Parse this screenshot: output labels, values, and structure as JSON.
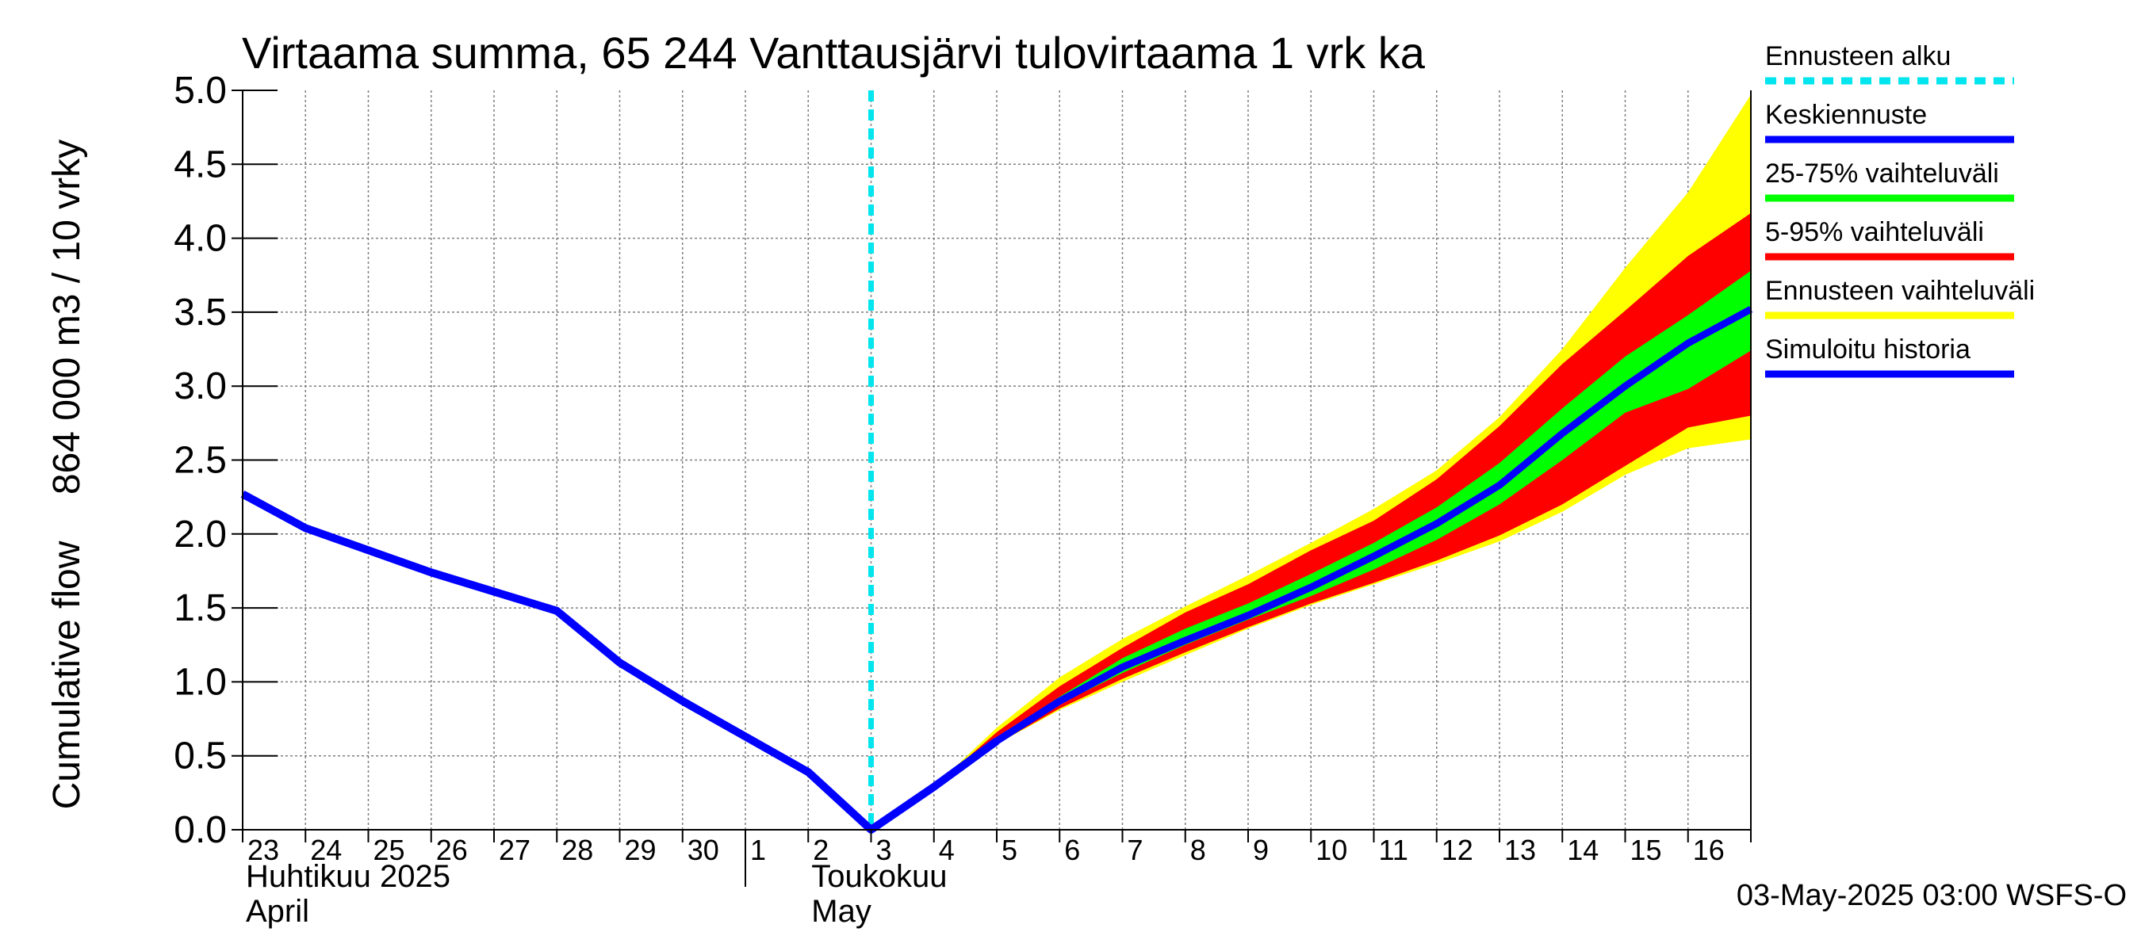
{
  "chart_data": {
    "type": "area",
    "title": "Virtaama summa, 65 244 Vanttausjärvi tulovirtaama 1 vrk ka",
    "ylabel_line1": "Cumulative flow",
    "ylabel_line2": "864 000 m3 / 10 vrky",
    "ylim": [
      0.0,
      5.0
    ],
    "yticks": [
      "0.0",
      "0.5",
      "1.0",
      "1.5",
      "2.0",
      "2.5",
      "3.0",
      "3.5",
      "4.0",
      "4.5",
      "5.0"
    ],
    "xlim": [
      0,
      24
    ],
    "x_day_labels": [
      "23",
      "24",
      "25",
      "26",
      "27",
      "28",
      "29",
      "30",
      "1",
      "2",
      "3",
      "4",
      "5",
      "6",
      "7",
      "8",
      "9",
      "10",
      "11",
      "12",
      "13",
      "14",
      "15",
      "16"
    ],
    "month_labels": [
      {
        "fi": "Huhtikuu  2025",
        "en": "April",
        "start_day_index": 0
      },
      {
        "fi": "Toukokuu",
        "en": "May",
        "start_day_index": 9
      }
    ],
    "month_boundary_day_index": 8,
    "forecast_start_x": 10.0,
    "grid": true,
    "history": {
      "x": [
        0,
        1,
        2,
        3,
        4,
        5,
        6,
        7,
        8,
        9,
        10,
        11,
        12
      ],
      "y": [
        2.27,
        2.04,
        1.89,
        1.74,
        1.61,
        1.48,
        1.13,
        0.87,
        0.63,
        0.39,
        0.0,
        0.29,
        0.6
      ]
    },
    "median": {
      "x": [
        11,
        12,
        13,
        14,
        15,
        16,
        17,
        18,
        19,
        20,
        21,
        22,
        23,
        24
      ],
      "y": [
        0.29,
        0.6,
        0.87,
        1.1,
        1.28,
        1.45,
        1.64,
        1.85,
        2.07,
        2.33,
        2.68,
        3.0,
        3.29,
        3.52
      ]
    },
    "bands": [
      {
        "name": "Ennusteen vaihteluväli",
        "color": "#ffff00",
        "x": [
          11,
          12,
          13,
          14,
          15,
          16,
          17,
          18,
          19,
          20,
          21,
          22,
          23,
          24
        ],
        "lower": [
          0.29,
          0.58,
          0.81,
          1.0,
          1.18,
          1.36,
          1.52,
          1.66,
          1.8,
          1.95,
          2.15,
          2.4,
          2.58,
          2.64
        ],
        "upper": [
          0.29,
          0.69,
          1.03,
          1.29,
          1.51,
          1.72,
          1.94,
          2.17,
          2.43,
          2.79,
          3.25,
          3.8,
          4.31,
          4.97
        ]
      },
      {
        "name": "5-95% vaihteluväli",
        "color": "#ff0000",
        "x": [
          11,
          12,
          13,
          14,
          15,
          16,
          17,
          18,
          19,
          20,
          21,
          22,
          23,
          24
        ],
        "lower": [
          0.29,
          0.58,
          0.82,
          1.02,
          1.2,
          1.37,
          1.53,
          1.67,
          1.82,
          1.99,
          2.2,
          2.46,
          2.72,
          2.8
        ],
        "upper": [
          0.29,
          0.66,
          0.97,
          1.23,
          1.47,
          1.66,
          1.89,
          2.09,
          2.37,
          2.73,
          3.15,
          3.51,
          3.88,
          4.17
        ]
      },
      {
        "name": "25-75% vaihteluväli",
        "color": "#00ff00",
        "x": [
          11,
          12,
          13,
          14,
          15,
          16,
          17,
          18,
          19,
          20,
          21,
          22,
          23,
          24
        ],
        "lower": [
          0.29,
          0.6,
          0.85,
          1.06,
          1.25,
          1.42,
          1.58,
          1.76,
          1.96,
          2.2,
          2.5,
          2.82,
          2.98,
          3.24
        ],
        "upper": [
          0.29,
          0.62,
          0.9,
          1.16,
          1.36,
          1.53,
          1.73,
          1.94,
          2.18,
          2.48,
          2.85,
          3.2,
          3.48,
          3.78
        ]
      }
    ],
    "legend": [
      {
        "label": "Ennusteen alku",
        "color": "#00e5ee",
        "style": "dashed"
      },
      {
        "label": "Keskiennuste",
        "color": "#0000ff",
        "style": "solid"
      },
      {
        "label": "25-75% vaihteluväli",
        "color": "#00ff00",
        "style": "solid"
      },
      {
        "label": "5-95% vaihteluväli",
        "color": "#ff0000",
        "style": "solid"
      },
      {
        "label": "Ennusteen vaihteluväli",
        "color": "#ffff00",
        "style": "solid"
      },
      {
        "label": "Simuloitu historia",
        "color": "#0000ff",
        "style": "solid"
      }
    ],
    "footer": "03-May-2025 03:00 WSFS-O"
  }
}
